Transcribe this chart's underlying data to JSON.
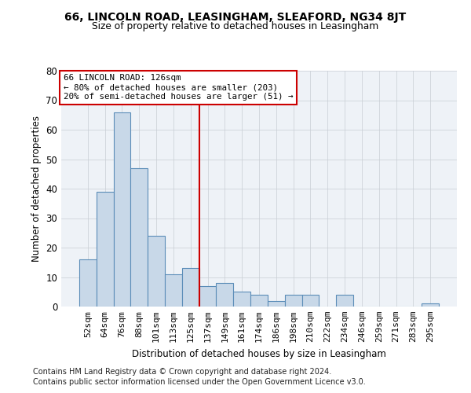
{
  "title1": "66, LINCOLN ROAD, LEASINGHAM, SLEAFORD, NG34 8JT",
  "title2": "Size of property relative to detached houses in Leasingham",
  "xlabel": "Distribution of detached houses by size in Leasingham",
  "ylabel": "Number of detached properties",
  "categories": [
    "52sqm",
    "64sqm",
    "76sqm",
    "88sqm",
    "101sqm",
    "113sqm",
    "125sqm",
    "137sqm",
    "149sqm",
    "161sqm",
    "174sqm",
    "186sqm",
    "198sqm",
    "210sqm",
    "222sqm",
    "234sqm",
    "246sqm",
    "259sqm",
    "271sqm",
    "283sqm",
    "295sqm"
  ],
  "values": [
    16,
    39,
    66,
    47,
    24,
    11,
    13,
    7,
    8,
    5,
    4,
    2,
    4,
    4,
    0,
    4,
    0,
    0,
    0,
    0,
    1
  ],
  "bar_color": "#c8d8e8",
  "bar_edgecolor": "#5b8db8",
  "vline_x": 6.5,
  "vline_color": "#cc0000",
  "annotation_text": "66 LINCOLN ROAD: 126sqm\n← 80% of detached houses are smaller (203)\n20% of semi-detached houses are larger (51) →",
  "annotation_box_edgecolor": "#cc0000",
  "ylim": [
    0,
    80
  ],
  "yticks": [
    0,
    10,
    20,
    30,
    40,
    50,
    60,
    70,
    80
  ],
  "footnote1": "Contains HM Land Registry data © Crown copyright and database right 2024.",
  "footnote2": "Contains public sector information licensed under the Open Government Licence v3.0.",
  "background_color": "#eef2f7",
  "plot_background": "#ffffff"
}
